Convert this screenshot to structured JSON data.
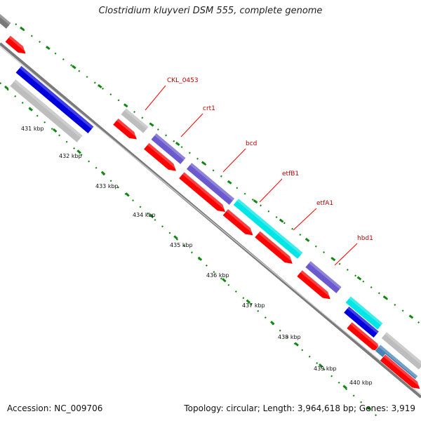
{
  "header": {
    "title": "Clostridium kluyveri DSM 555, complete genome"
  },
  "footer": {
    "accession": "Accession: NC_009706",
    "stats": "Topology: circular; Length: 3,964,618 bp; Genes: 3,919"
  },
  "ticks": [
    "431 kbp",
    "432 kbp",
    "433 kbp",
    "434 kbp",
    "435 kbp",
    "436 kbp",
    "437 kbp",
    "438 kbp",
    "439 kbp",
    "440 kbp"
  ],
  "genes": [
    {
      "name": "CKL_0453",
      "color": "#ff0000"
    },
    {
      "name": "crt1",
      "color": "#ff0000"
    },
    {
      "name": "bcd",
      "color": "#ff0000"
    },
    {
      "name": "etfB1",
      "color": "#ff0000"
    },
    {
      "name": "etfA1",
      "color": "#ff0000"
    },
    {
      "name": "hbd1",
      "color": "#ff0000"
    }
  ],
  "colors": {
    "cds": "#ff0000",
    "cog_purple": "#6a5acd",
    "cog_cyan": "#00e5e5",
    "cog_blue": "#0000dd",
    "cog_gray": "#bdbdbd",
    "backbone": "#7a7a7a",
    "ticks": "#118811"
  }
}
